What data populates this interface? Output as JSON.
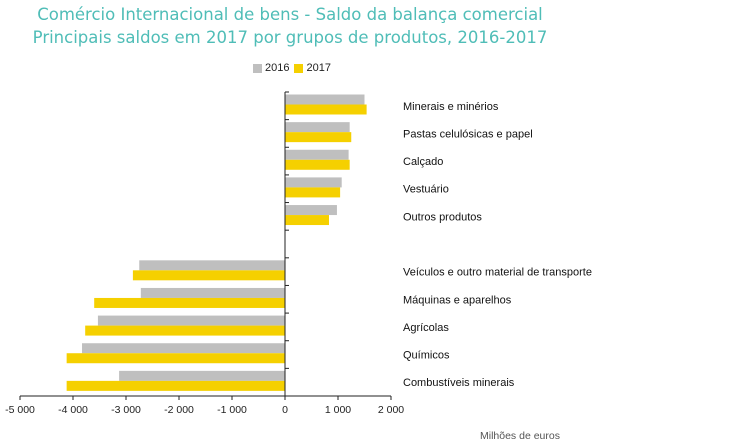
{
  "title_line1": "Comércio Internacional de bens - Saldo da balança comercial",
  "title_line2": "Principais saldos em 2017 por grupos de produtos, 2016-2017",
  "unit_label": "Milhões de euros",
  "colors": {
    "series_2016": "#bfbfbf",
    "series_2017": "#f5d000",
    "title": "#4fbdb7",
    "axis": "#222222"
  },
  "chart_data": {
    "type": "bar",
    "orientation": "horizontal",
    "title": "Comércio Internacional de bens - Saldo da balança comercial — Principais saldos em 2017 por grupos de produtos, 2016-2017",
    "xlabel": "Milhões de euros",
    "ylabel": "",
    "xlim": [
      -5000,
      2000
    ],
    "xticks": [
      -5000,
      -4000,
      -3000,
      -2000,
      -1000,
      0,
      1000,
      2000
    ],
    "xtick_labels": [
      "-5 000",
      "-4 000",
      "-3 000",
      "-2 000",
      "-1 000",
      "0",
      "1 000",
      "2 000"
    ],
    "legend": [
      "2016",
      "2017"
    ],
    "legend_position": "top",
    "categories": [
      "Minerais e minérios",
      "Pastas celulósicas e papel",
      "Calçado",
      "Vestuário",
      "Outros produtos",
      "",
      "Veículos e outro material de transporte",
      "Máquinas e aparelhos",
      "Agrícolas",
      "Químicos",
      "Combustíveis minerais"
    ],
    "series": [
      {
        "name": "2016",
        "values": [
          1500,
          1220,
          1200,
          1070,
          980,
          null,
          -2750,
          -2720,
          -3530,
          -3830,
          -3130
        ]
      },
      {
        "name": "2017",
        "values": [
          1540,
          1250,
          1220,
          1040,
          830,
          null,
          -2870,
          -3600,
          -3770,
          -4120,
          -4120
        ]
      }
    ]
  }
}
